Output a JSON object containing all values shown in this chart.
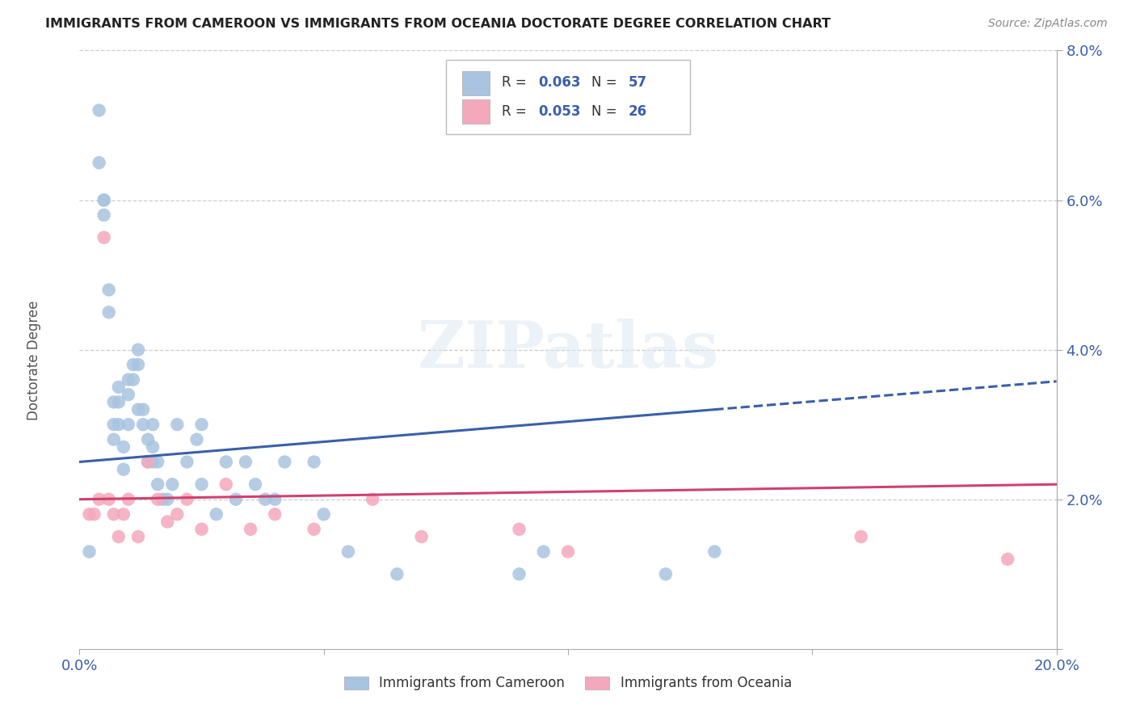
{
  "title": "IMMIGRANTS FROM CAMEROON VS IMMIGRANTS FROM OCEANIA DOCTORATE DEGREE CORRELATION CHART",
  "source_text": "Source: ZipAtlas.com",
  "ylabel": "Doctorate Degree",
  "xlim": [
    0.0,
    0.2
  ],
  "ylim": [
    0.0,
    0.08
  ],
  "xticks": [
    0.0,
    0.05,
    0.1,
    0.15,
    0.2
  ],
  "yticks": [
    0.0,
    0.02,
    0.04,
    0.06,
    0.08
  ],
  "series1_color": "#a8c4e0",
  "series2_color": "#f4a8bc",
  "series1_label": "Immigrants from Cameroon",
  "series2_label": "Immigrants from Oceania",
  "series1_R": "0.063",
  "series1_N": "57",
  "series2_R": "0.053",
  "series2_N": "26",
  "trend1_color": "#3a5faa",
  "trend2_color": "#d04070",
  "background_color": "#ffffff",
  "watermark": "ZIPatlas",
  "series1_x": [
    0.002,
    0.004,
    0.004,
    0.005,
    0.005,
    0.005,
    0.006,
    0.006,
    0.007,
    0.007,
    0.007,
    0.008,
    0.008,
    0.008,
    0.009,
    0.009,
    0.01,
    0.01,
    0.01,
    0.011,
    0.011,
    0.012,
    0.012,
    0.012,
    0.013,
    0.013,
    0.014,
    0.014,
    0.015,
    0.015,
    0.015,
    0.016,
    0.016,
    0.017,
    0.018,
    0.019,
    0.02,
    0.022,
    0.024,
    0.025,
    0.025,
    0.028,
    0.03,
    0.032,
    0.034,
    0.036,
    0.038,
    0.04,
    0.042,
    0.048,
    0.05,
    0.055,
    0.065,
    0.09,
    0.095,
    0.12,
    0.13
  ],
  "series1_y": [
    0.013,
    0.072,
    0.065,
    0.06,
    0.06,
    0.058,
    0.048,
    0.045,
    0.033,
    0.03,
    0.028,
    0.035,
    0.033,
    0.03,
    0.027,
    0.024,
    0.036,
    0.034,
    0.03,
    0.038,
    0.036,
    0.04,
    0.038,
    0.032,
    0.032,
    0.03,
    0.028,
    0.025,
    0.03,
    0.027,
    0.025,
    0.025,
    0.022,
    0.02,
    0.02,
    0.022,
    0.03,
    0.025,
    0.028,
    0.03,
    0.022,
    0.018,
    0.025,
    0.02,
    0.025,
    0.022,
    0.02,
    0.02,
    0.025,
    0.025,
    0.018,
    0.013,
    0.01,
    0.01,
    0.013,
    0.01,
    0.013
  ],
  "series2_x": [
    0.002,
    0.003,
    0.004,
    0.005,
    0.006,
    0.007,
    0.008,
    0.009,
    0.01,
    0.012,
    0.014,
    0.016,
    0.018,
    0.02,
    0.022,
    0.025,
    0.03,
    0.035,
    0.04,
    0.048,
    0.06,
    0.07,
    0.09,
    0.1,
    0.16,
    0.19
  ],
  "series2_y": [
    0.018,
    0.018,
    0.02,
    0.055,
    0.02,
    0.018,
    0.015,
    0.018,
    0.02,
    0.015,
    0.025,
    0.02,
    0.017,
    0.018,
    0.02,
    0.016,
    0.022,
    0.016,
    0.018,
    0.016,
    0.02,
    0.015,
    0.016,
    0.013,
    0.015,
    0.012
  ],
  "trend1_x_solid_end": 0.13,
  "trend1_start_y": 0.025,
  "trend1_end_y": 0.032,
  "trend2_start_y": 0.02,
  "trend2_end_y": 0.022
}
